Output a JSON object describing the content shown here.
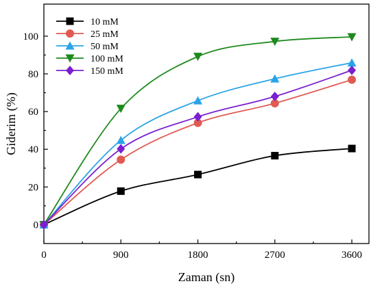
{
  "chart_data": {
    "type": "line",
    "xlabel": "Zaman (sn)",
    "ylabel": "Giderim (%)",
    "x": [
      0,
      900,
      1800,
      2700,
      3600
    ],
    "xlim": [
      0,
      3800
    ],
    "ylim": [
      -10,
      117
    ],
    "xticks": [
      0,
      900,
      1800,
      2700,
      3600
    ],
    "yticks": [
      0,
      20,
      40,
      60,
      80,
      100
    ],
    "grid": false,
    "legend_position": "top-left",
    "series": [
      {
        "name": "10 mM",
        "marker": "square",
        "color": "#000000",
        "values": [
          0,
          17.8,
          26.6,
          36.6,
          40.4
        ]
      },
      {
        "name": "25 mM",
        "marker": "circle",
        "color": "#e05a52",
        "values": [
          0,
          34.5,
          54.0,
          64.4,
          76.9
        ]
      },
      {
        "name": "50 mM",
        "marker": "triangle-up",
        "color": "#2aa4e8",
        "values": [
          0,
          44.8,
          65.8,
          77.4,
          85.9
        ]
      },
      {
        "name": "100 mM",
        "marker": "triangle-down",
        "color": "#1e8a1e",
        "values": [
          0,
          61.6,
          89.2,
          97.2,
          99.6
        ]
      },
      {
        "name": "150 mM",
        "marker": "diamond",
        "color": "#7a1fd0",
        "values": [
          0,
          40.2,
          57.2,
          68.0,
          81.9
        ]
      }
    ]
  }
}
